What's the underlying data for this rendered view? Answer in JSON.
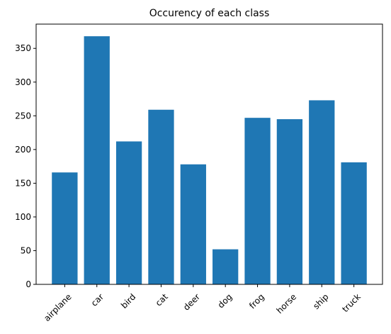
{
  "chart_data": {
    "type": "bar",
    "title": "Occurency of each class",
    "xlabel": "",
    "ylabel": "",
    "categories": [
      "airplane",
      "car",
      "bird",
      "cat",
      "deer",
      "dog",
      "frog",
      "horse",
      "ship",
      "truck"
    ],
    "values": [
      166,
      368,
      212,
      259,
      178,
      52,
      247,
      245,
      273,
      181
    ],
    "ylim": [
      0,
      386
    ],
    "yticks": [
      0,
      50,
      100,
      150,
      200,
      250,
      300,
      350
    ],
    "x_tick_rotation_deg": 45,
    "grid": false,
    "legend": "none",
    "bar_color": "#1f77b4"
  }
}
